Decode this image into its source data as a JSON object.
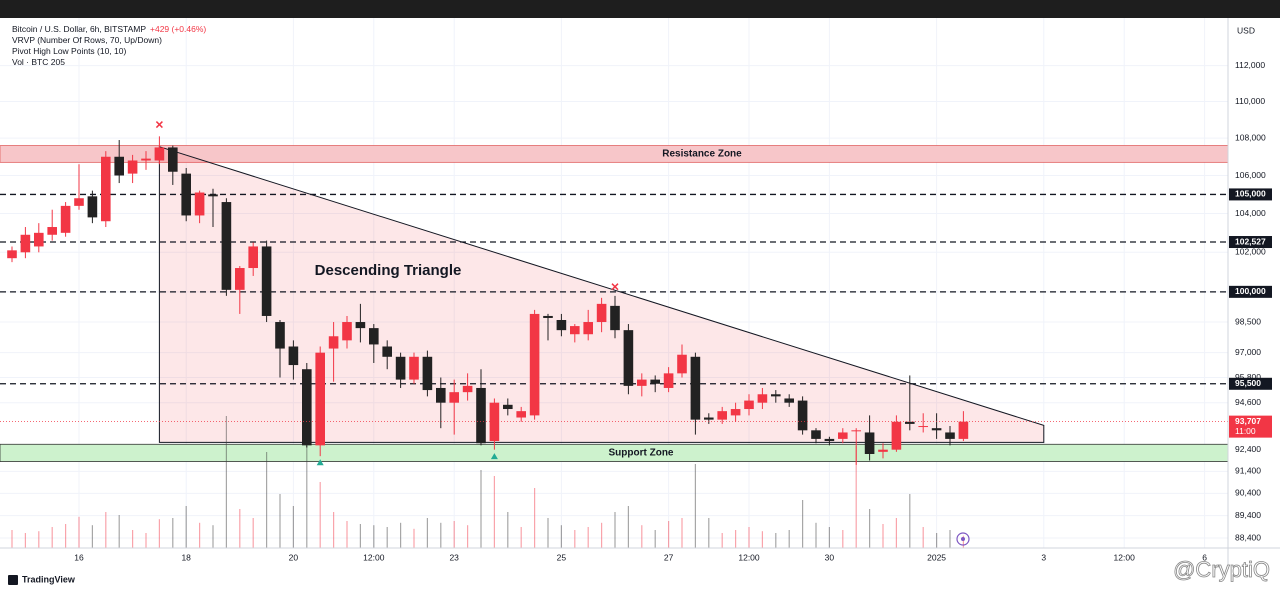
{
  "chart_data": {
    "type": "candlestick",
    "title": "Bitcoin / U.S. Dollar, 6h, BITSTAMP",
    "change": "+429 (+0.46%)",
    "indicators": [
      "VRVP (Number Of Rows, 70, Up/Down)",
      "Pivot High Low Points (10, 10)"
    ],
    "volume_label": "Vol · BTC",
    "currency": "USD",
    "categories": [
      null,
      null,
      null,
      null,
      null,
      "16",
      null,
      null,
      null,
      null,
      null,
      null,
      null,
      "18",
      null,
      null,
      null,
      null,
      null,
      null,
      null,
      "20",
      null,
      null,
      null,
      null,
      null,
      "12:00",
      null,
      null,
      null,
      null,
      null,
      "23",
      null,
      null,
      null,
      null,
      null,
      null,
      null,
      "25",
      null,
      null,
      null,
      null,
      null,
      null,
      null,
      "27",
      null,
      null,
      null,
      null,
      null,
      "12:00",
      null,
      null,
      null,
      null,
      null,
      "30",
      null,
      null,
      null,
      null,
      null,
      null,
      null,
      "2025",
      null,
      null,
      null,
      null,
      null,
      null,
      null,
      "3",
      null,
      null,
      null,
      null,
      null,
      "12:00",
      null,
      null,
      null,
      null,
      null,
      "6"
    ],
    "open": [
      101700,
      102000,
      102300,
      102900,
      103000,
      104400,
      104900,
      103600,
      107000,
      106100,
      106800,
      106800,
      107500,
      106100,
      103900,
      105000,
      104600,
      100100,
      101200,
      102300,
      98500,
      97300,
      96200,
      92600,
      97200,
      97600,
      98500,
      98200,
      97300,
      96800,
      95700,
      96800,
      95300,
      94600,
      95100,
      95300,
      92800,
      94500,
      93900,
      94000,
      98800,
      98600,
      97900,
      97900,
      98500,
      99300,
      98100,
      95400,
      95700,
      95300,
      96000,
      96800,
      93900,
      93800,
      94000,
      94300,
      94600,
      95000,
      94800,
      94700,
      93300,
      92900,
      92900,
      93300,
      93200,
      92300,
      92400,
      93700,
      93500,
      93400,
      93200,
      92900,
      null,
      null,
      null,
      null,
      null,
      null,
      null,
      null,
      null,
      null,
      null,
      null,
      null,
      null,
      null,
      null,
      null,
      null
    ],
    "high": [
      102300,
      103300,
      103500,
      104200,
      104600,
      106600,
      105200,
      107300,
      107900,
      107100,
      107300,
      108100,
      107600,
      106400,
      105200,
      105300,
      104800,
      101300,
      102500,
      102600,
      98600,
      97600,
      96500,
      97300,
      98500,
      98800,
      99400,
      98400,
      97600,
      97000,
      97000,
      97100,
      95800,
      95700,
      96000,
      96200,
      94800,
      94800,
      94400,
      99100,
      98900,
      98900,
      98400,
      99100,
      99700,
      99800,
      98400,
      96000,
      95900,
      96300,
      97400,
      97000,
      94100,
      94400,
      94600,
      95000,
      95300,
      95200,
      95000,
      94900,
      93400,
      93000,
      93400,
      93400,
      94000,
      92700,
      94000,
      95900,
      94100,
      94100,
      93500,
      94200,
      null,
      null,
      null,
      null,
      null,
      null,
      null,
      null,
      null,
      null,
      null,
      null,
      null,
      null,
      null,
      null,
      null,
      null
    ],
    "low": [
      101500,
      101700,
      102000,
      102600,
      102800,
      104200,
      103500,
      103300,
      105600,
      105600,
      106300,
      106600,
      105500,
      103600,
      103500,
      103300,
      99800,
      98900,
      100800,
      98500,
      95800,
      95700,
      92500,
      92100,
      95600,
      97200,
      97500,
      96500,
      96200,
      95300,
      95500,
      94900,
      93400,
      93100,
      94700,
      92600,
      92400,
      94000,
      93700,
      93800,
      97600,
      97800,
      97500,
      97600,
      98000,
      97700,
      95000,
      94900,
      95100,
      95100,
      95800,
      93100,
      93600,
      93600,
      93700,
      94000,
      94300,
      94600,
      94400,
      93100,
      92700,
      92600,
      92700,
      91700,
      91900,
      92000,
      92300,
      93300,
      93200,
      92900,
      92600,
      92800,
      null,
      null,
      null,
      null,
      null,
      null,
      null,
      null,
      null,
      null,
      null,
      null,
      null,
      null,
      null,
      null,
      null,
      null
    ],
    "close": [
      102100,
      102900,
      103000,
      103300,
      104400,
      104800,
      103800,
      107000,
      106000,
      106800,
      106900,
      107500,
      106200,
      103900,
      105100,
      104900,
      100100,
      101200,
      102300,
      98800,
      97200,
      96400,
      92600,
      97000,
      97800,
      98500,
      98200,
      97400,
      96800,
      95700,
      96800,
      95200,
      94600,
      95100,
      95400,
      92700,
      94600,
      94300,
      94200,
      98900,
      98700,
      98100,
      98300,
      98500,
      99400,
      98100,
      95400,
      95700,
      95500,
      96000,
      96900,
      93800,
      93800,
      94200,
      94300,
      94700,
      95000,
      94900,
      94600,
      93300,
      92900,
      92800,
      93200,
      93300,
      92200,
      92400,
      93700,
      93600,
      93500,
      93300,
      92900,
      93707,
      null,
      null,
      null,
      null,
      null,
      null,
      null,
      null,
      null,
      null,
      null,
      null,
      null,
      null,
      null,
      null,
      null,
      null
    ],
    "volume": [
      300,
      250,
      280,
      350,
      400,
      520,
      380,
      600,
      550,
      300,
      250,
      480,
      500,
      700,
      420,
      380,
      2200,
      650,
      500,
      1600,
      900,
      700,
      1700,
      1100,
      600,
      450,
      400,
      380,
      350,
      420,
      320,
      500,
      420,
      450,
      380,
      1300,
      1200,
      600,
      350,
      1000,
      500,
      380,
      300,
      350,
      420,
      600,
      700,
      380,
      300,
      450,
      500,
      1400,
      500,
      250,
      300,
      350,
      280,
      250,
      300,
      800,
      420,
      350,
      300,
      1700,
      650,
      400,
      500,
      900,
      350,
      250,
      300,
      205,
      null,
      null,
      null,
      null,
      null,
      null,
      null,
      null,
      null,
      null,
      null,
      null,
      null,
      null,
      null,
      null,
      null,
      null
    ],
    "up_color": "#f23645",
    "down_color": "#222222",
    "log": true,
    "grid": true,
    "ylim": [
      87960,
      114700
    ],
    "yticks": [
      {
        "value": 88400,
        "label": "88,400"
      },
      {
        "value": 89400,
        "label": "89,400"
      },
      {
        "value": 90400,
        "label": "90,400"
      },
      {
        "value": 91400,
        "label": "91,400"
      },
      {
        "value": 92400,
        "label": "92,400"
      },
      {
        "value": 94600,
        "label": "94,600"
      },
      {
        "value": 95800,
        "label": "95,800"
      },
      {
        "value": 97000,
        "label": "97,000"
      },
      {
        "value": 98500,
        "label": "98,500"
      },
      {
        "value": 100000,
        "label": "100,000"
      },
      {
        "value": 102000,
        "label": "102,000"
      },
      {
        "value": 104000,
        "label": "104,000"
      },
      {
        "value": 106000,
        "label": "106,000"
      },
      {
        "value": 108000,
        "label": "108,000"
      },
      {
        "value": 110000,
        "label": "110,000"
      },
      {
        "value": 112000,
        "label": "112,000"
      }
    ],
    "levels": [
      {
        "value": 105000,
        "label": "105,000"
      },
      {
        "value": 102527,
        "label": "102,527"
      },
      {
        "value": 100000,
        "label": "100,000"
      },
      {
        "value": 95500,
        "label": "95,500"
      }
    ],
    "last_price": {
      "value": 93707,
      "label": "93,707",
      "time": "11:00"
    },
    "resistance": {
      "label": "Resistance Zone",
      "range": [
        106700,
        107600
      ],
      "color": "#f7c6c9"
    },
    "support": {
      "label": "Support Zone",
      "range": [
        91850,
        92650
      ],
      "color": "#cdf2cd"
    },
    "triangle": {
      "label": "Descending Triangle",
      "start": 11,
      "end": 77,
      "top": 107540,
      "apex": 93530,
      "base": 92740
    },
    "pivots_high": [
      {
        "index": 11,
        "value": 108740
      },
      {
        "index": 45,
        "value": 100260
      }
    ],
    "pivots_low": [
      {
        "index": 23,
        "value": 91820
      },
      {
        "index": 36,
        "value": 92100
      }
    ],
    "branding": "TradingView",
    "watermark": "@CryptiQ"
  }
}
